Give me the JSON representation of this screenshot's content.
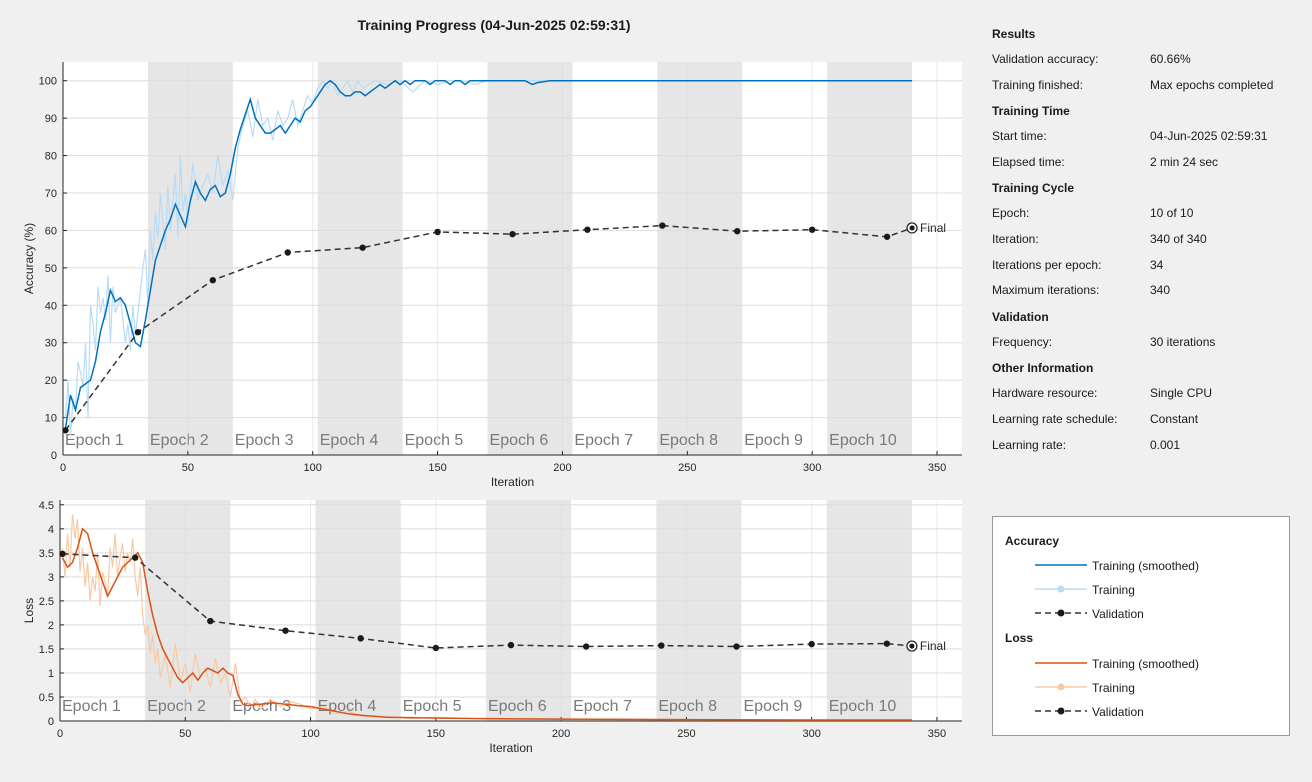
{
  "title": "Training Progress (04-Jun-2025 02:59:31)",
  "colors": {
    "accuracy_smoothed": "#0072bd",
    "accuracy_raw": "#b8dcf6",
    "loss_smoothed": "#d95319",
    "loss_raw": "#f8c9a6",
    "validation": "#333333",
    "epoch_shade": "#e6e6e6"
  },
  "info": {
    "sections": [
      {
        "heading": "Results",
        "rows": [
          {
            "label": "Validation accuracy:",
            "value": "60.66%"
          },
          {
            "label": "Training finished:",
            "value": "Max epochs completed"
          }
        ]
      },
      {
        "heading": "Training Time",
        "rows": [
          {
            "label": "Start time:",
            "value": "04-Jun-2025 02:59:31"
          },
          {
            "label": "Elapsed time:",
            "value": "2 min 24 sec"
          }
        ]
      },
      {
        "heading": "Training Cycle",
        "rows": [
          {
            "label": "Epoch:",
            "value": "10 of 10"
          },
          {
            "label": "Iteration:",
            "value": "340 of 340"
          },
          {
            "label": "Iterations per epoch:",
            "value": "34"
          },
          {
            "label": "Maximum iterations:",
            "value": "340"
          }
        ]
      },
      {
        "heading": "Validation",
        "rows": [
          {
            "label": "Frequency:",
            "value": "30 iterations"
          }
        ]
      },
      {
        "heading": "Other Information",
        "rows": [
          {
            "label": "Hardware resource:",
            "value": "Single CPU"
          },
          {
            "label": "Learning rate schedule:",
            "value": "Constant"
          },
          {
            "label": "Learning rate:",
            "value": "0.001"
          }
        ]
      }
    ]
  },
  "legend": {
    "accuracy_heading": "Accuracy",
    "loss_heading": "Loss",
    "training_smoothed": "Training (smoothed)",
    "training": "Training",
    "validation": "Validation"
  },
  "chart_data": [
    {
      "type": "line",
      "name": "accuracy",
      "ylabel": "Accuracy (%)",
      "xlabel": "Iteration",
      "xlim": [
        0,
        360
      ],
      "ylim": [
        0,
        105
      ],
      "xticks": [
        0,
        50,
        100,
        150,
        200,
        250,
        300,
        350
      ],
      "yticks": [
        0,
        10,
        20,
        30,
        40,
        50,
        60,
        70,
        80,
        90,
        100
      ],
      "grid": true,
      "epoch_labels": [
        "Epoch 1",
        "Epoch 2",
        "Epoch 3",
        "Epoch 4",
        "Epoch 5",
        "Epoch 6",
        "Epoch 7",
        "Epoch 8",
        "Epoch 9",
        "Epoch 10"
      ],
      "iterations_per_epoch": 34,
      "final_label": "Final",
      "series": [
        {
          "name": "Training (smoothed)",
          "x": [
            1,
            3,
            5,
            7,
            9,
            11,
            13,
            15,
            17,
            19,
            21,
            23,
            25,
            27,
            29,
            31,
            33,
            35,
            37,
            39,
            41,
            43,
            45,
            47,
            49,
            51,
            53,
            55,
            57,
            59,
            61,
            63,
            65,
            67,
            69,
            71,
            73,
            75,
            77,
            79,
            81,
            83,
            85,
            87,
            89,
            91,
            93,
            95,
            97,
            99,
            101,
            103,
            105,
            107,
            109,
            111,
            113,
            115,
            117,
            119,
            121,
            123,
            125,
            127,
            129,
            131,
            133,
            135,
            137,
            139,
            141,
            143,
            145,
            147,
            149,
            151,
            153,
            155,
            157,
            159,
            161,
            163,
            165,
            170,
            175,
            180,
            185,
            188,
            190,
            195,
            200,
            220,
            250,
            280,
            310,
            340
          ],
          "y": [
            7,
            16,
            12,
            18,
            19,
            20,
            25,
            33,
            38,
            44,
            41,
            42,
            40,
            35,
            30,
            29,
            36,
            44,
            52,
            56,
            60,
            63,
            67,
            64,
            61,
            68,
            73,
            70,
            68,
            71,
            72,
            69,
            70,
            75,
            82,
            87,
            91,
            95,
            90,
            88,
            86,
            86,
            87,
            88,
            86,
            88,
            90,
            89,
            92,
            93,
            95,
            97,
            99,
            100,
            99,
            97,
            96,
            96,
            97,
            97,
            96,
            97,
            98,
            99,
            98,
            99,
            100,
            99,
            100,
            99,
            100,
            100,
            100,
            99,
            100,
            100,
            100,
            99,
            100,
            100,
            99,
            100,
            100,
            100,
            100,
            100,
            100,
            99,
            99.5,
            100,
            100,
            100,
            100,
            100,
            100,
            100
          ]
        },
        {
          "name": "Training",
          "x": [
            1,
            2,
            3,
            4,
            5,
            6,
            7,
            8,
            9,
            10,
            11,
            12,
            13,
            14,
            15,
            16,
            17,
            18,
            19,
            20,
            21,
            22,
            23,
            24,
            25,
            26,
            27,
            28,
            29,
            30,
            31,
            32,
            33,
            34,
            35,
            36,
            37,
            38,
            39,
            40,
            41,
            42,
            43,
            44,
            45,
            46,
            47,
            48,
            49,
            50,
            52,
            54,
            56,
            58,
            60,
            62,
            64,
            66,
            68,
            70,
            72,
            74,
            76,
            78,
            80,
            82,
            84,
            86,
            88,
            90,
            92,
            94,
            96,
            98,
            100,
            102,
            104,
            106,
            108,
            110,
            112,
            114,
            116,
            118,
            120,
            125,
            130,
            135,
            140,
            145,
            150,
            155,
            160,
            165,
            170,
            175,
            180,
            190,
            200,
            250,
            300,
            340
          ],
          "y": [
            10,
            20,
            5,
            15,
            12,
            25,
            22,
            18,
            30,
            10,
            40,
            35,
            28,
            45,
            38,
            42,
            36,
            48,
            30,
            45,
            38,
            40,
            42,
            36,
            30,
            35,
            28,
            40,
            32,
            38,
            44,
            50,
            55,
            40,
            60,
            52,
            65,
            58,
            70,
            62,
            55,
            72,
            60,
            68,
            75,
            58,
            80,
            65,
            70,
            62,
            78,
            68,
            72,
            75,
            70,
            80,
            72,
            76,
            68,
            82,
            88,
            92,
            85,
            95,
            88,
            90,
            84,
            92,
            88,
            90,
            95,
            88,
            92,
            96,
            94,
            98,
            100,
            98,
            100,
            96,
            98,
            100,
            97,
            100,
            98,
            100,
            99,
            100,
            97,
            100,
            99,
            100,
            100,
            99,
            100,
            100,
            100,
            100,
            100,
            100,
            100,
            100
          ]
        },
        {
          "name": "Validation",
          "x": [
            1,
            30,
            60,
            90,
            120,
            150,
            180,
            210,
            240,
            270,
            300,
            330,
            340
          ],
          "y": [
            6.6,
            32.8,
            46.7,
            54.1,
            55.4,
            59.6,
            59.0,
            60.2,
            61.3,
            59.8,
            60.2,
            58.3,
            60.66
          ]
        }
      ]
    },
    {
      "type": "line",
      "name": "loss",
      "ylabel": "Loss",
      "xlabel": "Iteration",
      "xlim": [
        0,
        360
      ],
      "ylim": [
        0,
        4.6
      ],
      "xticks": [
        0,
        50,
        100,
        150,
        200,
        250,
        300,
        350
      ],
      "yticks": [
        0,
        0.5,
        1,
        1.5,
        2,
        2.5,
        3,
        3.5,
        4,
        4.5
      ],
      "grid": true,
      "epoch_labels": [
        "Epoch 1",
        "Epoch 2",
        "Epoch 3",
        "Epoch 4",
        "Epoch 5",
        "Epoch 6",
        "Epoch 7",
        "Epoch 8",
        "Epoch 9",
        "Epoch 10"
      ],
      "iterations_per_epoch": 34,
      "final_label": "Final",
      "series": [
        {
          "name": "Training (smoothed)",
          "x": [
            1,
            3,
            5,
            7,
            9,
            11,
            13,
            15,
            17,
            19,
            21,
            23,
            25,
            27,
            29,
            31,
            33,
            35,
            37,
            39,
            41,
            43,
            45,
            47,
            49,
            51,
            53,
            55,
            57,
            59,
            61,
            63,
            65,
            67,
            69,
            71,
            73,
            75,
            80,
            85,
            90,
            95,
            100,
            105,
            110,
            115,
            120,
            130,
            140,
            150,
            170,
            200,
            250,
            300,
            340
          ],
          "y": [
            3.4,
            3.2,
            3.3,
            3.6,
            4.0,
            3.9,
            3.5,
            3.2,
            2.9,
            2.6,
            2.8,
            3.0,
            3.2,
            3.3,
            3.4,
            3.5,
            3.3,
            2.7,
            2.2,
            1.8,
            1.5,
            1.3,
            1.1,
            0.9,
            0.8,
            0.9,
            1.0,
            0.85,
            1.0,
            1.1,
            1.05,
            1.0,
            1.1,
            1.0,
            0.95,
            0.55,
            0.35,
            0.32,
            0.35,
            0.38,
            0.35,
            0.32,
            0.3,
            0.25,
            0.2,
            0.15,
            0.12,
            0.08,
            0.07,
            0.06,
            0.05,
            0.04,
            0.03,
            0.02,
            0.02
          ]
        },
        {
          "name": "Training",
          "x": [
            1,
            2,
            3,
            4,
            5,
            6,
            7,
            8,
            9,
            10,
            11,
            12,
            13,
            14,
            15,
            16,
            17,
            18,
            19,
            20,
            21,
            22,
            23,
            24,
            25,
            26,
            27,
            28,
            29,
            30,
            31,
            32,
            33,
            34,
            35,
            36,
            37,
            38,
            39,
            40,
            42,
            44,
            46,
            48,
            50,
            52,
            54,
            56,
            58,
            60,
            62,
            64,
            66,
            68,
            70,
            72,
            74,
            76,
            78,
            80,
            84,
            88,
            92,
            96,
            100,
            105,
            110,
            115,
            120,
            130,
            140,
            150,
            170,
            200,
            250,
            300,
            340
          ],
          "y": [
            3.6,
            3.0,
            3.9,
            3.2,
            4.3,
            3.8,
            4.2,
            3.1,
            3.6,
            2.8,
            3.3,
            2.5,
            3.0,
            2.7,
            3.5,
            2.4,
            3.1,
            2.9,
            2.6,
            3.6,
            3.2,
            3.9,
            3.0,
            3.4,
            3.7,
            3.1,
            3.5,
            3.3,
            3.8,
            3.0,
            2.6,
            3.2,
            2.2,
            1.8,
            2.0,
            1.4,
            1.8,
            1.2,
            1.5,
            0.9,
            1.4,
            0.7,
            1.6,
            0.8,
            1.2,
            0.6,
            1.4,
            0.9,
            1.1,
            0.7,
            1.3,
            0.8,
            1.0,
            0.5,
            1.2,
            0.4,
            0.5,
            0.3,
            0.45,
            0.25,
            0.45,
            0.3,
            0.4,
            0.35,
            0.25,
            0.3,
            0.15,
            0.2,
            0.1,
            0.1,
            0.05,
            0.08,
            0.04,
            0.03,
            0.02,
            0.02,
            0.02
          ]
        },
        {
          "name": "Validation",
          "x": [
            1,
            30,
            60,
            90,
            120,
            150,
            180,
            210,
            240,
            270,
            300,
            330,
            340
          ],
          "y": [
            3.48,
            3.4,
            2.08,
            1.88,
            1.72,
            1.52,
            1.58,
            1.55,
            1.57,
            1.55,
            1.6,
            1.61,
            1.56
          ]
        }
      ]
    }
  ]
}
